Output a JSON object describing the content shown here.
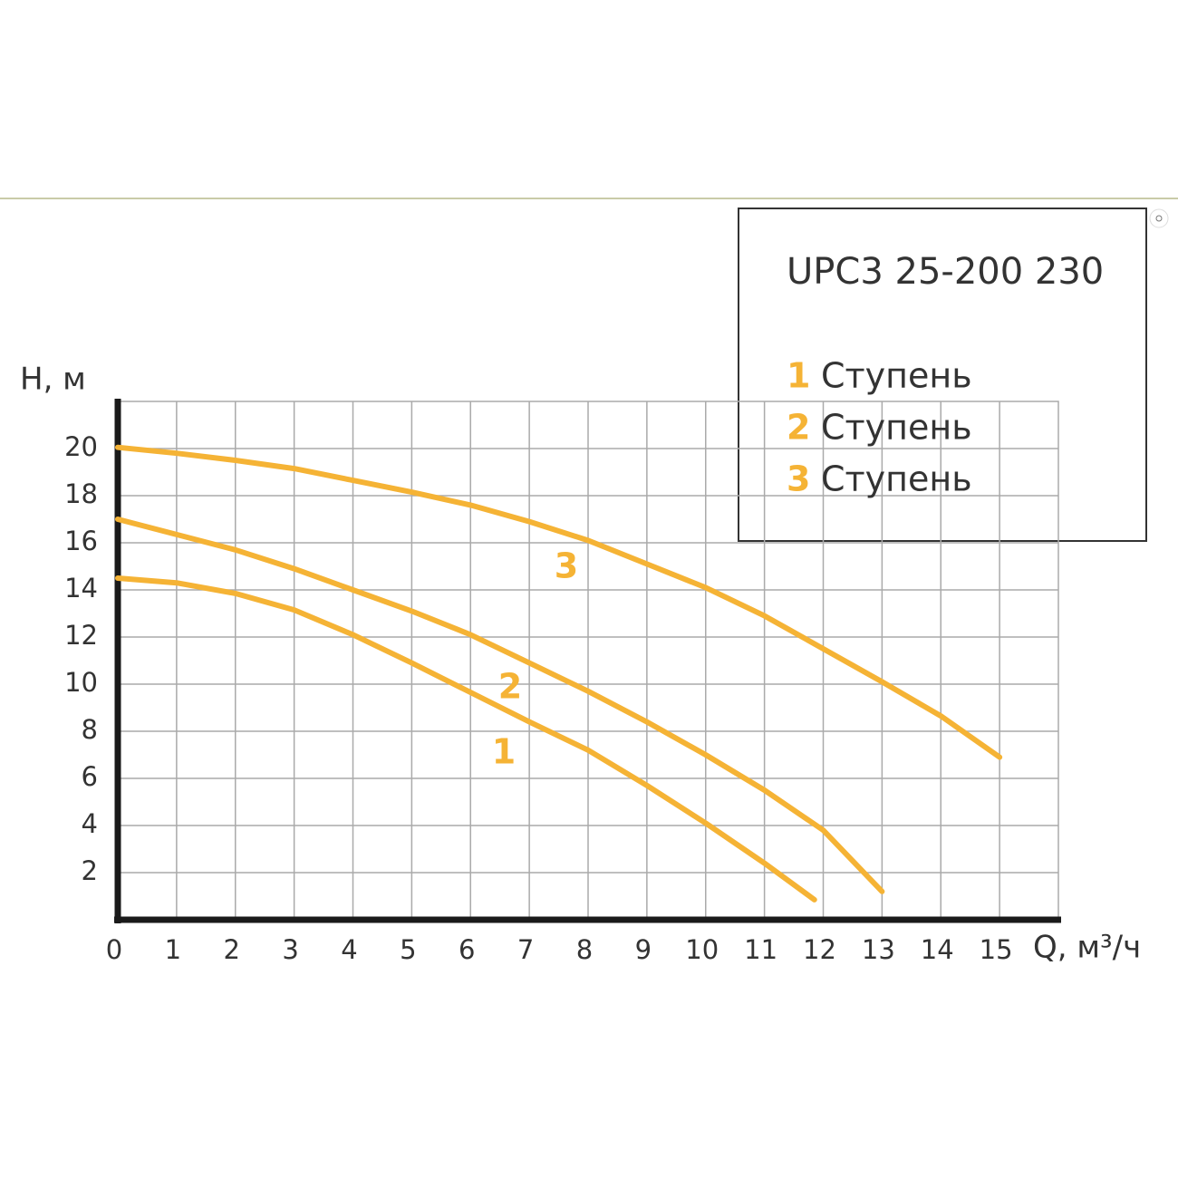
{
  "chart_data": {
    "type": "line",
    "legend_title": "UPC3 25-200 230",
    "y_label": "H, м",
    "x_label": "Q, м³/ч",
    "xlim": [
      0,
      16
    ],
    "ylim": [
      0,
      22
    ],
    "xticks": [
      0,
      1,
      2,
      3,
      4,
      5,
      6,
      7,
      8,
      9,
      10,
      11,
      12,
      13,
      14,
      15
    ],
    "yticks": [
      2,
      4,
      6,
      8,
      10,
      12,
      14,
      16,
      18,
      20
    ],
    "grid": true,
    "series": [
      {
        "label": "1",
        "name": "Ступень",
        "color": "#f5b335",
        "x": [
          0,
          1,
          2,
          3,
          4,
          5,
          6,
          7,
          8,
          9,
          10,
          11,
          11.85
        ],
        "values": [
          14.5,
          14.3,
          13.85,
          13.15,
          12.1,
          10.9,
          9.65,
          8.4,
          7.2,
          5.7,
          4.1,
          2.4,
          0.85
        ]
      },
      {
        "label": "2",
        "name": "Ступень",
        "color": "#f5b335",
        "x": [
          0,
          1,
          2,
          3,
          4,
          5,
          6,
          7,
          8,
          9,
          10,
          11,
          12,
          13
        ],
        "values": [
          17,
          16.35,
          15.7,
          14.9,
          14,
          13.1,
          12.1,
          10.9,
          9.7,
          8.4,
          7,
          5.5,
          3.8,
          1.2
        ]
      },
      {
        "label": "3",
        "name": "Ступень",
        "color": "#f5b335",
        "x": [
          0,
          1,
          2,
          3,
          4,
          5,
          6,
          7,
          8,
          9,
          10,
          11,
          12,
          13,
          14,
          15
        ],
        "values": [
          20.05,
          19.8,
          19.5,
          19.15,
          18.65,
          18.15,
          17.6,
          16.9,
          16.1,
          15.1,
          14.1,
          12.9,
          11.5,
          10.1,
          8.65,
          6.9
        ]
      }
    ]
  }
}
